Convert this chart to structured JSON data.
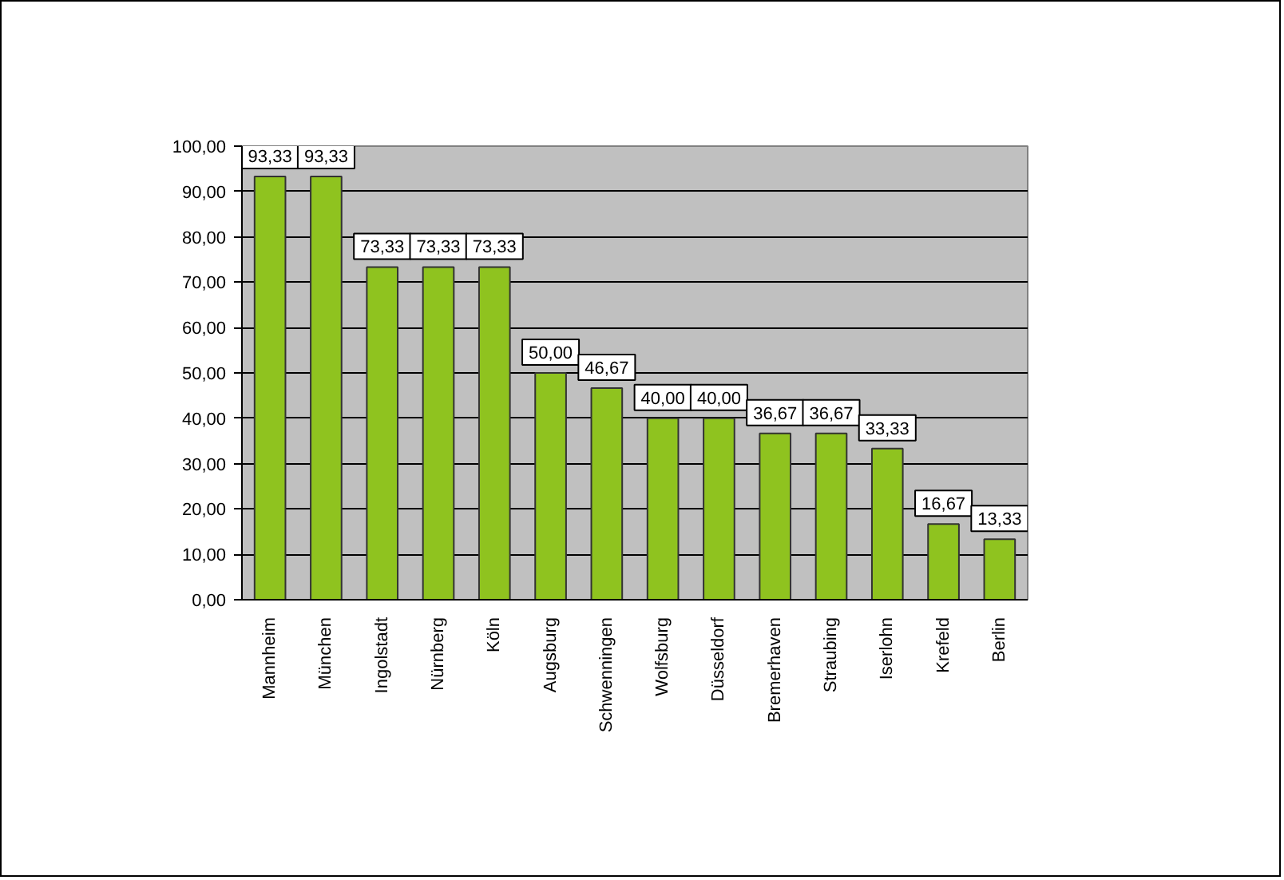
{
  "chart_data": {
    "type": "bar",
    "categories": [
      "Mannheim",
      "München",
      "Ingolstadt",
      "Nürnberg",
      "Köln",
      "Augsburg",
      "Schwenningen",
      "Wolfsburg",
      "Düsseldorf",
      "Bremerhaven",
      "Straubing",
      "Iserlohn",
      "Krefeld",
      "Berlin"
    ],
    "values": [
      93.33,
      93.33,
      73.33,
      73.33,
      73.33,
      50.0,
      46.67,
      40.0,
      40.0,
      36.67,
      36.67,
      33.33,
      16.67,
      13.33
    ],
    "value_labels": [
      "93,33",
      "93,33",
      "73,33",
      "73,33",
      "73,33",
      "50,00",
      "46,67",
      "40,00",
      "40,00",
      "36,67",
      "36,67",
      "33,33",
      "16,67",
      "13,33"
    ],
    "color": "#8fc31f",
    "ylim": [
      0,
      100
    ],
    "yticks": [
      {
        "value": 0,
        "label": "0,00"
      },
      {
        "value": 10,
        "label": "10,00"
      },
      {
        "value": 20,
        "label": "20,00"
      },
      {
        "value": 30,
        "label": "30,00"
      },
      {
        "value": 40,
        "label": "40,00"
      },
      {
        "value": 50,
        "label": "50,00"
      },
      {
        "value": 60,
        "label": "60,00"
      },
      {
        "value": 70,
        "label": "70,00"
      },
      {
        "value": 80,
        "label": "80,00"
      },
      {
        "value": 90,
        "label": "90,00"
      },
      {
        "value": 100,
        "label": "100,00"
      }
    ],
    "grid": "y"
  }
}
